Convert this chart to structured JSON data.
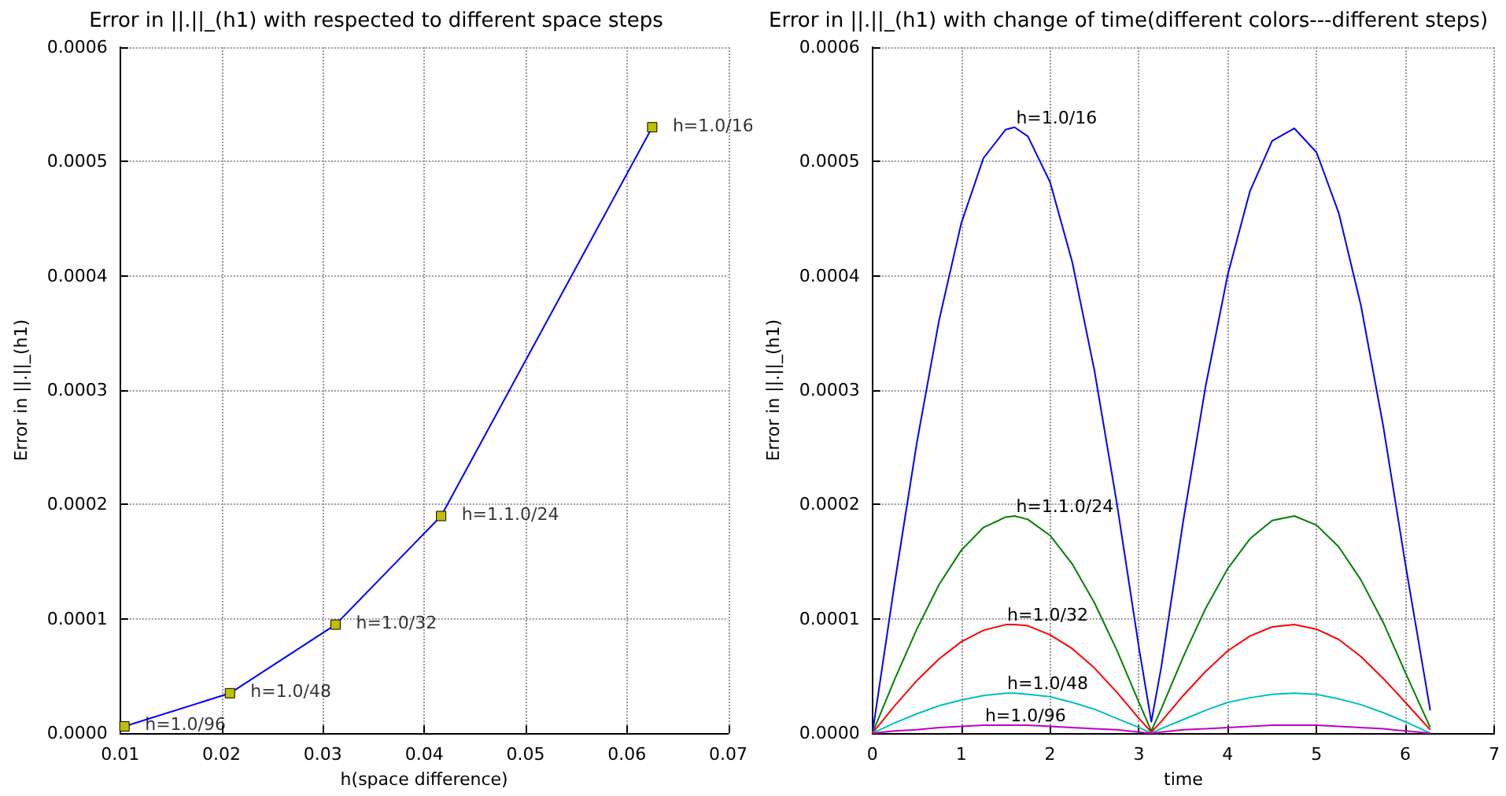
{
  "chart_data": [
    {
      "type": "line",
      "title": "Error in ||.||_(h1) with respected to different space steps",
      "xlabel": "h(space difference)",
      "ylabel": "Error in ||.||_(h1)",
      "x": [
        0.01042,
        0.02083,
        0.03125,
        0.04167,
        0.0625
      ],
      "series": [
        {
          "color": "#0000ff",
          "colors": [
            "#bfbf00",
            "#bfbf00",
            "#bfbf00",
            "#bfbf00",
            "#bfbf00"
          ],
          "values": [
            6e-06,
            3.5e-05,
            9.5e-05,
            0.00019,
            0.00053
          ],
          "marker": "square"
        }
      ],
      "annotations": [
        {
          "text": "h=1.0/96",
          "x": 0.01042,
          "y": 6e-06
        },
        {
          "text": "h=1.0/48",
          "x": 0.02083,
          "y": 3.5e-05
        },
        {
          "text": "h=1.0/32",
          "x": 0.03125,
          "y": 9.5e-05
        },
        {
          "text": "h=1.1.0/24",
          "x": 0.04167,
          "y": 0.00019
        },
        {
          "text": "h=1.0/16",
          "x": 0.0625,
          "y": 0.00053
        }
      ],
      "xlim": [
        0.01,
        0.07
      ],
      "xticks": [
        0.01,
        0.02,
        0.03,
        0.04,
        0.05,
        0.06,
        0.07
      ],
      "ylim": [
        0,
        0.0006
      ],
      "yticks": [
        {
          "value": 0,
          "label": "0.0000"
        },
        {
          "value": 0.0001,
          "label": "0.0001"
        },
        {
          "value": 0.0002,
          "label": "0.0002"
        },
        {
          "value": 0.0003,
          "label": "0.0003"
        },
        {
          "value": 0.0004,
          "label": "0.0004"
        },
        {
          "value": 0.0005,
          "label": "0.0005"
        },
        {
          "value": 0.0006,
          "label": "0.0006"
        }
      ],
      "grid": true,
      "legend": false,
      "line_style": "solid"
    },
    {
      "type": "line",
      "title": "Error in ||.||_(h1) with change of time(different colors---different steps)",
      "xlabel": "time",
      "ylabel": "Error in ||.||_(h1)",
      "x": [
        0,
        0.25,
        0.5,
        0.75,
        1,
        1.25,
        1.5,
        1.6,
        1.75,
        2,
        2.25,
        2.5,
        2.75,
        3,
        3.14,
        3.25,
        3.5,
        3.75,
        4,
        4.25,
        4.5,
        4.75,
        5,
        5.25,
        5.5,
        5.75,
        6,
        6.28
      ],
      "series": [
        {
          "name": "h=1.0/16",
          "color": "#0000ff",
          "values": [
            0,
            0.000131,
            0.000254,
            0.000361,
            0.000446,
            0.000503,
            0.000528,
            0.00053,
            0.000522,
            0.000482,
            0.000412,
            0.000317,
            0.000202,
            7.5e-05,
            1e-05,
            5.7e-05,
            0.000186,
            0.000303,
            0.000401,
            0.000474,
            0.000518,
            0.000529,
            0.000508,
            0.000455,
            0.000374,
            0.000269,
            0.000148,
            2e-05
          ]
        },
        {
          "name": "h=1.1.0/24",
          "color": "#008000",
          "values": [
            0,
            4.7e-05,
            9.1e-05,
            0.00013,
            0.00016,
            0.00018,
            0.000189,
            0.00019,
            0.000187,
            0.000173,
            0.000148,
            0.000114,
            7.3e-05,
            2.7e-05,
            2e-06,
            2.1e-05,
            6.7e-05,
            0.000109,
            0.000144,
            0.00017,
            0.000186,
            0.00019,
            0.000182,
            0.000163,
            0.000134,
            9.7e-05,
            5.3e-05,
            5e-06
          ]
        },
        {
          "name": "h=1.0/32",
          "color": "#ff0000",
          "values": [
            0,
            2.4e-05,
            4.6e-05,
            6.5e-05,
            8e-05,
            9e-05,
            9.5e-05,
            9.5e-05,
            9.4e-05,
            8.6e-05,
            7.4e-05,
            5.7e-05,
            3.6e-05,
            1.3e-05,
            1e-06,
            1e-05,
            3.3e-05,
            5.4e-05,
            7.2e-05,
            8.5e-05,
            9.3e-05,
            9.5e-05,
            9.1e-05,
            8.2e-05,
            6.7e-05,
            4.8e-05,
            2.7e-05,
            3e-06
          ]
        },
        {
          "name": "h=1.0/48",
          "color": "#00bfbf",
          "values": [
            0,
            9e-06,
            1.7e-05,
            2.4e-05,
            2.9e-05,
            3.3e-05,
            3.5e-05,
            3.5e-05,
            3.4e-05,
            3.2e-05,
            2.7e-05,
            2.1e-05,
            1.3e-05,
            5e-06,
            0,
            4e-06,
            1.2e-05,
            2e-05,
            2.7e-05,
            3.1e-05,
            3.4e-05,
            3.5e-05,
            3.4e-05,
            3e-05,
            2.5e-05,
            1.8e-05,
            1e-05,
            0
          ]
        },
        {
          "name": "h=1.0/96",
          "color": "#bf00bf",
          "values": [
            0,
            2e-06,
            3e-06,
            5e-06,
            6e-06,
            7e-06,
            7e-06,
            7e-06,
            7e-06,
            6e-06,
            5e-06,
            4e-06,
            3e-06,
            1e-06,
            0,
            1e-06,
            3e-06,
            4e-06,
            5e-06,
            6e-06,
            7e-06,
            7e-06,
            7e-06,
            6e-06,
            5e-06,
            4e-06,
            2e-06,
            0
          ]
        }
      ],
      "xlim": [
        0,
        7
      ],
      "xticks": [
        0,
        1,
        2,
        3,
        4,
        5,
        6,
        7
      ],
      "ylim": [
        0,
        0.0006
      ],
      "yticks": [
        {
          "value": 0,
          "label": "0.0000"
        },
        {
          "value": 0.0001,
          "label": "0.0001"
        },
        {
          "value": 0.0002,
          "label": "0.0002"
        },
        {
          "value": 0.0003,
          "label": "0.0003"
        },
        {
          "value": 0.0004,
          "label": "0.0004"
        },
        {
          "value": 0.0005,
          "label": "0.0005"
        },
        {
          "value": 0.0006,
          "label": "0.0006"
        }
      ],
      "grid": true,
      "legend": false,
      "marker": "none",
      "line_style": "solid"
    }
  ]
}
